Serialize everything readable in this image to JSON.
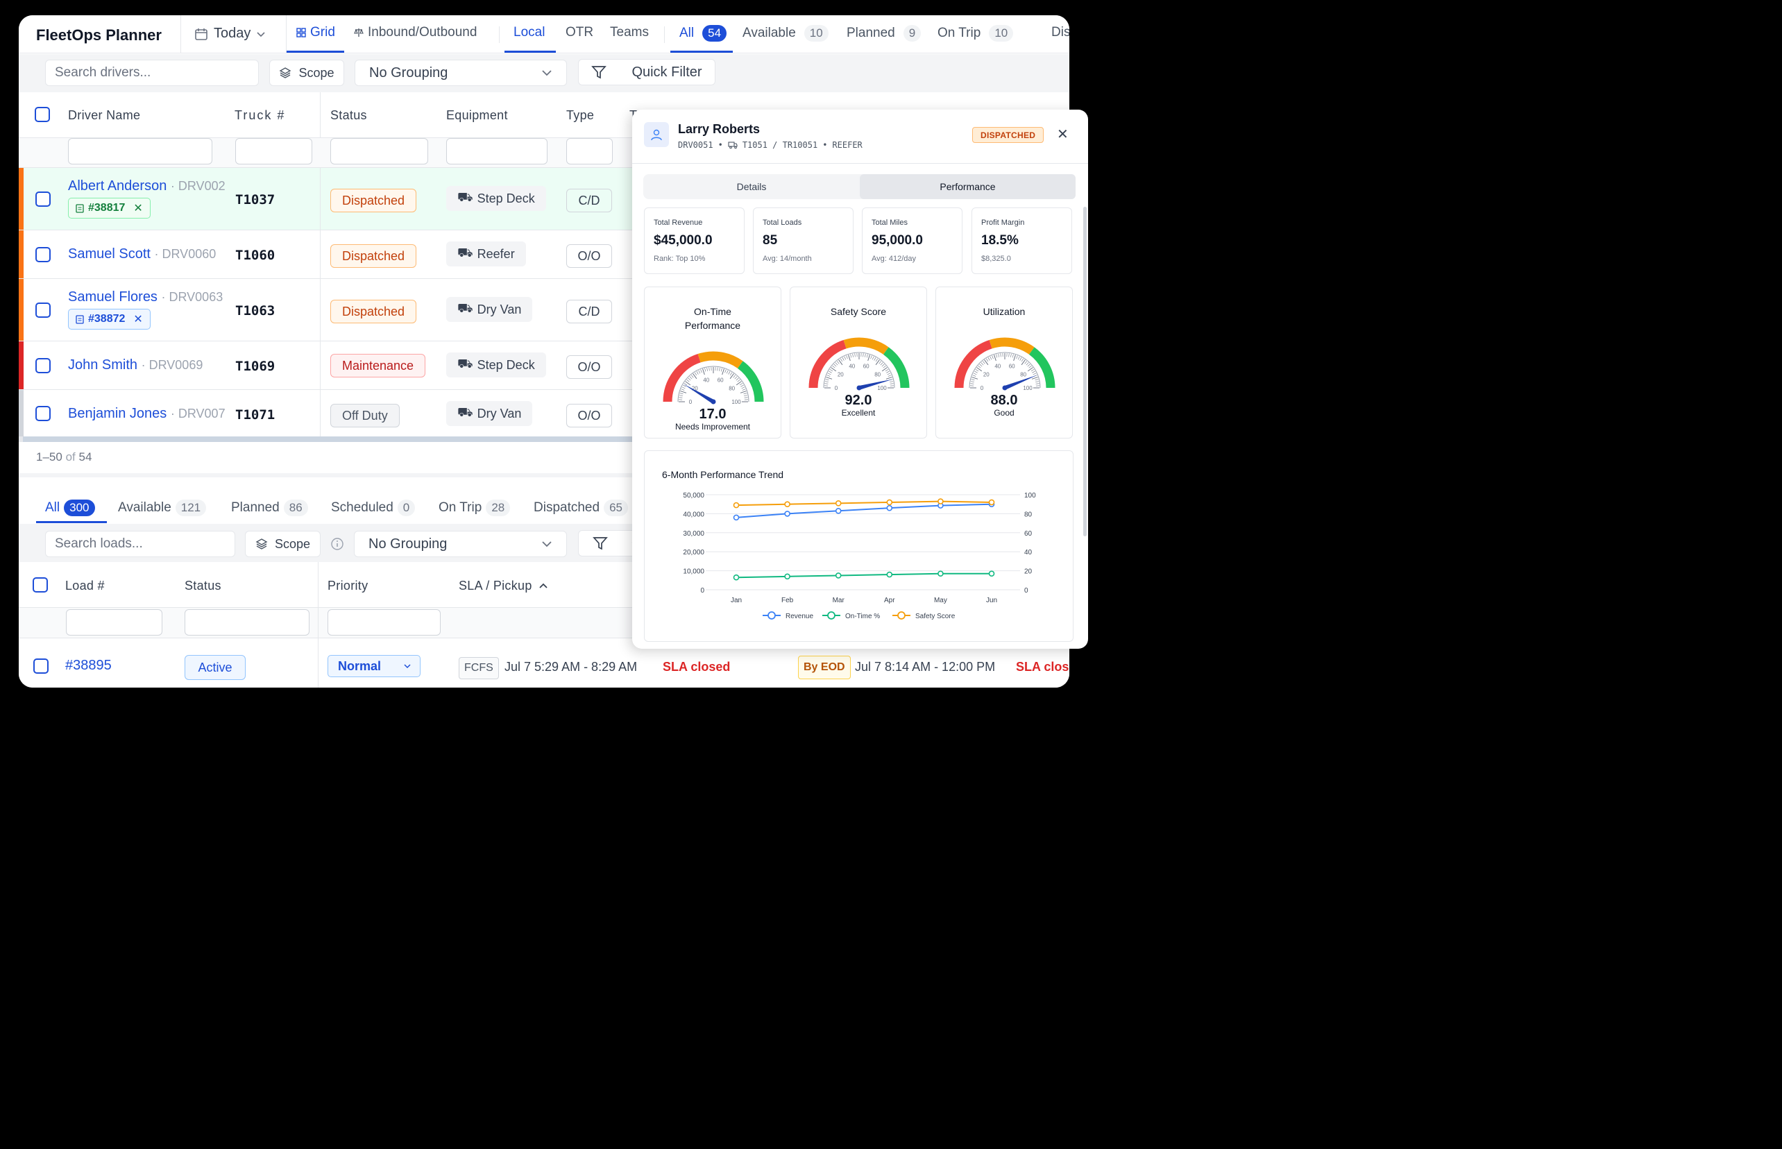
{
  "app_title": "FleetOps Planner",
  "date_selector": "Today",
  "view_tabs": [
    {
      "label": "Grid"
    },
    {
      "label": "Inbound/Outbound"
    }
  ],
  "scope_tabs": [
    {
      "label": "Local"
    },
    {
      "label": "OTR"
    },
    {
      "label": "Teams"
    }
  ],
  "status_tabs": [
    {
      "label": "All",
      "count": "54"
    },
    {
      "label": "Available",
      "count": "10"
    },
    {
      "label": "Planned",
      "count": "9"
    },
    {
      "label": "On Trip",
      "count": "10"
    },
    {
      "label": "Dispa"
    }
  ],
  "driver_toolbar": {
    "search_placeholder": "Search drivers...",
    "scope_label": "Scope",
    "grouping": "No Grouping",
    "quick_filter": "Quick Filter"
  },
  "driver_columns": [
    "Driver Name",
    "Truck #",
    "Status",
    "Equipment",
    "Type",
    "T"
  ],
  "drivers": [
    {
      "name": "Albert Anderson",
      "id": "· DRV002",
      "load": "#38817",
      "truck": "T1037",
      "status": "Dispatched",
      "equipment": "Step Deck",
      "type": "C/D",
      "bar_color": "#f97316"
    },
    {
      "name": "Samuel Scott",
      "id": "· DRV0060",
      "truck": "T1060",
      "status": "Dispatched",
      "equipment": "Reefer",
      "type": "O/O",
      "bar_color": "#f97316"
    },
    {
      "name": "Samuel Flores",
      "id": "· DRV0063",
      "load": "#38872",
      "truck": "T1063",
      "status": "Dispatched",
      "equipment": "Dry Van",
      "type": "C/D",
      "bar_color": "#f97316"
    },
    {
      "name": "John Smith",
      "id": "· DRV0069",
      "truck": "T1069",
      "status": "Maintenance",
      "equipment": "Step Deck",
      "type": "O/O",
      "bar_color": "#dc2626"
    },
    {
      "name": "Benjamin Jones",
      "id": "· DRV007",
      "truck": "T1071",
      "status": "Off Duty",
      "equipment": "Dry Van",
      "type": "O/O",
      "bar_color": "#d1d5db"
    }
  ],
  "pagination": {
    "range": "1–50",
    "of": "of",
    "total": "54"
  },
  "load_tabs": [
    {
      "label": "All",
      "count": "300"
    },
    {
      "label": "Available",
      "count": "121"
    },
    {
      "label": "Planned",
      "count": "86"
    },
    {
      "label": "Scheduled",
      "count": "0"
    },
    {
      "label": "On Trip",
      "count": "28"
    },
    {
      "label": "Dispatched",
      "count": "65"
    }
  ],
  "load_toolbar": {
    "search_placeholder": "Search loads...",
    "scope_label": "Scope",
    "grouping": "No Grouping",
    "quick_filter_partial": "Q"
  },
  "load_columns": [
    "Load #",
    "Status",
    "Priority",
    "SLA / Pickup"
  ],
  "loads": [
    {
      "id": "#38895",
      "status": "Active",
      "priority": "Normal",
      "pickup_type": "FCFS",
      "pickup_window": "Jul 7 5:29 AM - 8:29 AM",
      "pickup_sla": "SLA closed",
      "delivery_type": "By EOD",
      "delivery_window": "Jul 7 8:14 AM - 12:00 PM",
      "delivery_sla": "SLA close"
    }
  ],
  "driver_panel": {
    "name": "Larry Roberts",
    "driver_id": "DRV0051",
    "truck": "T1051 / TR10051",
    "equipment": "REEFER",
    "status": "DISPATCHED",
    "tabs": [
      "Details",
      "Performance"
    ],
    "kpis": [
      {
        "label": "Total Revenue",
        "value": "$45,000.0",
        "sub": "Rank: Top 10%"
      },
      {
        "label": "Total Loads",
        "value": "85",
        "sub": "Avg: 14/month"
      },
      {
        "label": "Total Miles",
        "value": "95,000.0",
        "sub": "Avg: 412/day"
      },
      {
        "label": "Profit Margin",
        "value": "18.5%",
        "sub": "$8,325.0"
      }
    ],
    "gauges": [
      {
        "title": "On-Time Performance",
        "value": 17.0,
        "value_text": "17.0",
        "rating": "Needs Improvement"
      },
      {
        "title": "Safety Score",
        "value": 92.0,
        "value_text": "92.0",
        "rating": "Excellent"
      },
      {
        "title": "Utilization",
        "value": 88.0,
        "value_text": "88.0",
        "rating": "Good"
      }
    ],
    "gauge_ticks": [
      "0",
      "20",
      "40",
      "60",
      "80",
      "100"
    ],
    "colors": {
      "red": "#ef4444",
      "orange": "#f59e0b",
      "green": "#22c55e",
      "needle": "#1e40af"
    }
  },
  "chart_data": {
    "type": "line",
    "title": "6-Month Performance Trend",
    "categories": [
      "Jan",
      "Feb",
      "Mar",
      "Apr",
      "May",
      "Jun"
    ],
    "left_axis": {
      "min": 0,
      "max": 50000,
      "ticks": [
        "0",
        "10,000",
        "20,000",
        "30,000",
        "40,000",
        "50,000"
      ]
    },
    "right_axis": {
      "min": 0,
      "max": 100,
      "ticks": [
        "0",
        "20",
        "40",
        "60",
        "80",
        "100"
      ]
    },
    "series": [
      {
        "name": "Revenue",
        "axis": "left",
        "color": "#3b82f6",
        "values": [
          38000,
          40000,
          41500,
          43000,
          44300,
          45000
        ]
      },
      {
        "name": "On-Time %",
        "axis": "right",
        "color": "#10b981",
        "values": [
          13,
          14,
          15,
          16,
          17,
          17
        ]
      },
      {
        "name": "Safety Score",
        "axis": "right",
        "color": "#f59e0b",
        "values": [
          89,
          90,
          91,
          92,
          93,
          92
        ]
      }
    ],
    "legend": "bottom",
    "grid": true
  }
}
